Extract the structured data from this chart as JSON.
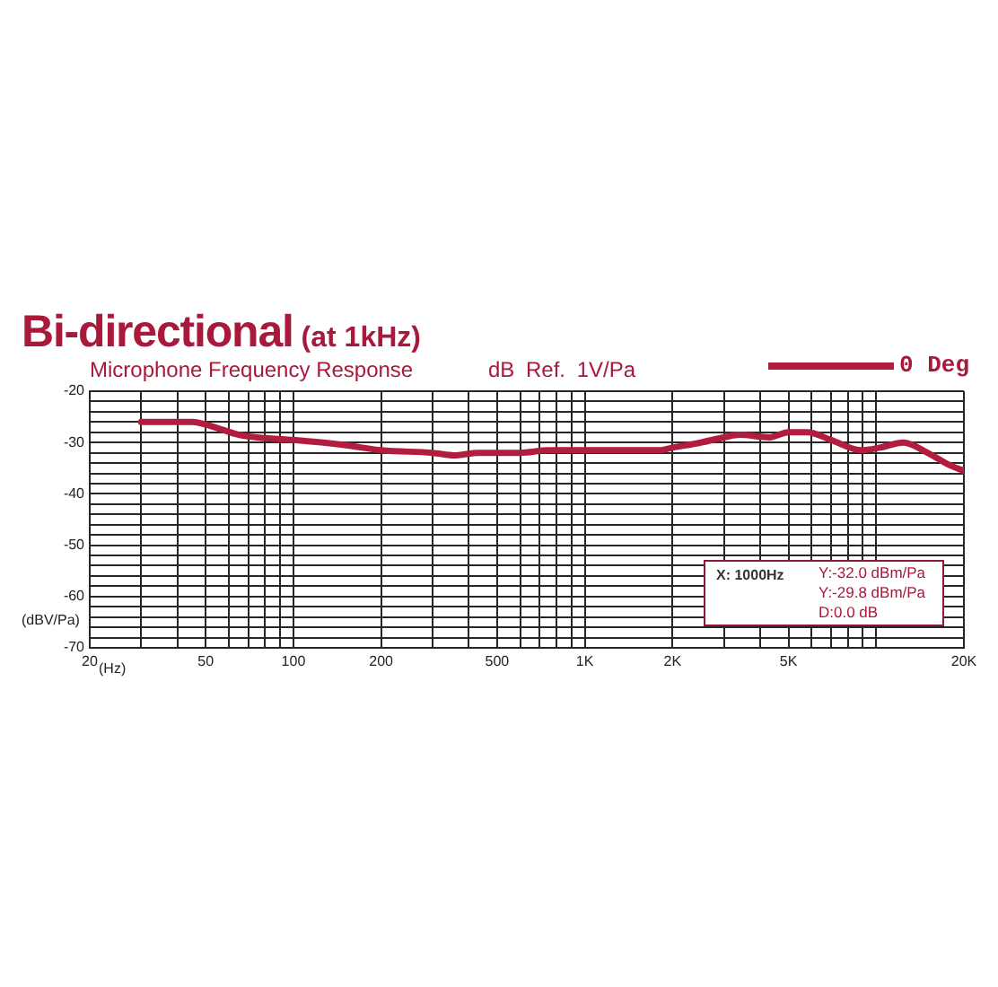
{
  "chart_data": {
    "type": "line",
    "title": "Bi-directional (at 1kHz)",
    "subtitle": "Microphone Frequency Response",
    "xlabel": "(Hz)",
    "ylabel": "(dBV/Pa)",
    "annotations": [
      "dB Ref. 1V/Pa",
      "X: 1000Hz",
      "Y:-32.0 dBm/Pa",
      "Y:-29.8 dBm/Pa",
      "D:0.0 dB"
    ],
    "x": [
      30,
      45,
      50,
      57,
      65,
      75,
      100,
      150,
      200,
      300,
      360,
      430,
      600,
      750,
      1000,
      1800,
      2000,
      2500,
      3000,
      3400,
      4300,
      5000,
      5800,
      7000,
      8900,
      10300,
      12400,
      15000,
      18000,
      20000
    ],
    "series": [
      {
        "name": "0 Deg",
        "color": "#b21c3e",
        "values": [
          -26,
          -26,
          -26.5,
          -27.5,
          -28.5,
          -29,
          -29.5,
          -30.5,
          -31.5,
          -32,
          -32.5,
          -32,
          -32,
          -31.5,
          -31.5,
          -31.5,
          -31,
          -30,
          -29,
          -28.5,
          -29,
          -28,
          -28,
          -29.5,
          -31.5,
          -31,
          -30,
          -32,
          -34.5,
          -35.5
        ]
      }
    ],
    "log": "x",
    "xlim": [
      20,
      20000
    ],
    "xticks": [
      20,
      {
        "value": 30,
        "label": null
      },
      {
        "value": 40,
        "label": null
      },
      50,
      {
        "value": 60,
        "label": null
      },
      {
        "value": 70,
        "label": null
      },
      {
        "value": 80,
        "label": null
      },
      {
        "value": 90,
        "label": null
      },
      100,
      200,
      {
        "value": 300,
        "label": null
      },
      {
        "value": 400,
        "label": null
      },
      500,
      {
        "value": 600,
        "label": null
      },
      {
        "value": 700,
        "label": null
      },
      {
        "value": 800,
        "label": null
      },
      {
        "value": 900,
        "label": null
      },
      {
        "value": 1000,
        "label": "1K"
      },
      {
        "value": 2000,
        "label": "2K"
      },
      {
        "value": 3000,
        "label": null
      },
      {
        "value": 4000,
        "label": null
      },
      {
        "value": 5000,
        "label": "5K"
      },
      {
        "value": 6000,
        "label": null
      },
      {
        "value": 7000,
        "label": null
      },
      {
        "value": 8000,
        "label": null
      },
      {
        "value": 9000,
        "label": null
      },
      {
        "value": 10000,
        "label": null
      },
      {
        "value": 20000,
        "label": "20K"
      }
    ],
    "ylim": [
      -70,
      -20
    ],
    "yticks": [
      -20,
      {
        "value": -22,
        "label": null
      },
      {
        "value": -24,
        "label": null
      },
      {
        "value": -26,
        "label": null
      },
      {
        "value": -28,
        "label": null
      },
      -30,
      {
        "value": -32,
        "label": null
      },
      {
        "value": -34,
        "label": null
      },
      {
        "value": -36,
        "label": null
      },
      {
        "value": -38,
        "label": null
      },
      -40,
      {
        "value": -42,
        "label": null
      },
      {
        "value": -44,
        "label": null
      },
      {
        "value": -46,
        "label": null
      },
      {
        "value": -48,
        "label": null
      },
      -50,
      {
        "value": -52,
        "label": null
      },
      {
        "value": -54,
        "label": null
      },
      {
        "value": -56,
        "label": null
      },
      {
        "value": -58,
        "label": null
      },
      -60,
      {
        "value": -62,
        "label": null
      },
      {
        "value": -64,
        "label": null
      },
      {
        "value": -66,
        "label": null
      },
      {
        "value": -68,
        "label": null
      },
      -70
    ],
    "grid": true,
    "legend": "top right"
  }
}
